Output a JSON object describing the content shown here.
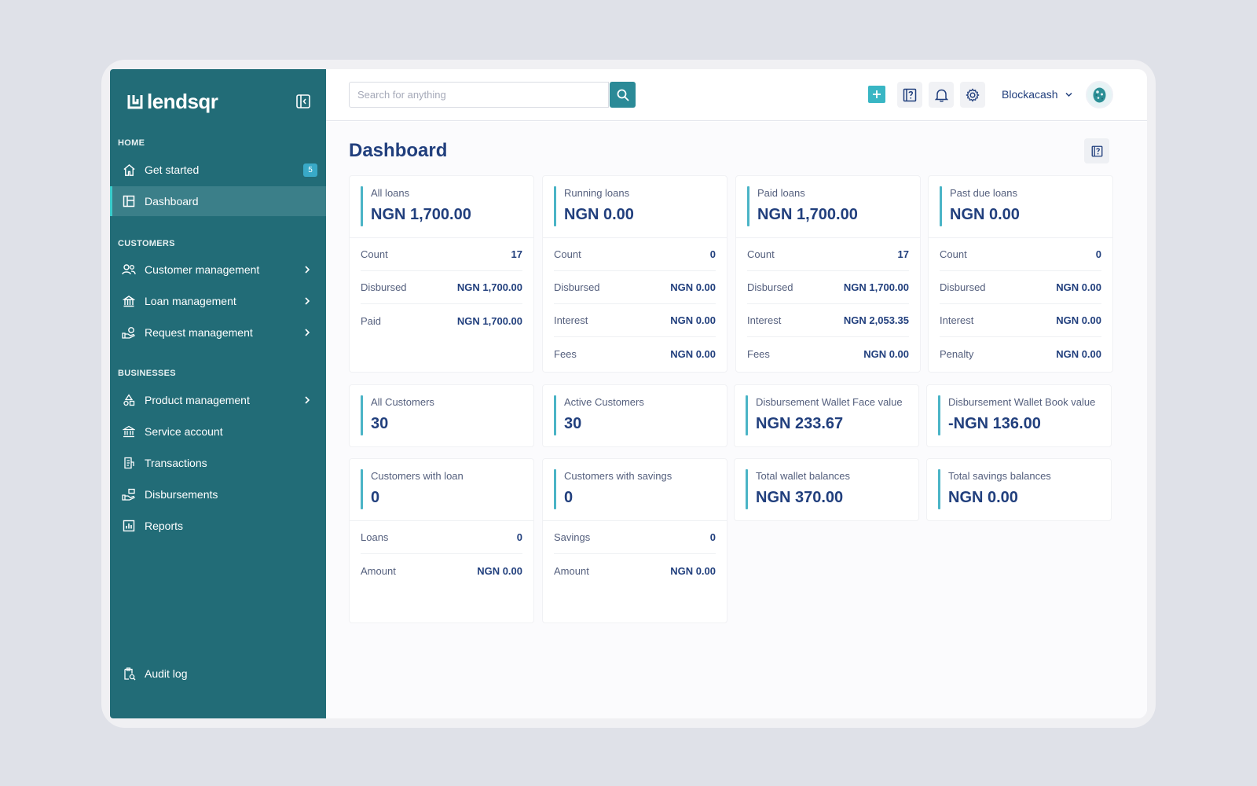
{
  "brand": {
    "name": "lendsqr"
  },
  "sidebar": {
    "sections": {
      "home": "HOME",
      "customers": "CUSTOMERS",
      "businesses": "BUSINESSES"
    },
    "get_started": {
      "label": "Get started",
      "badge": "5",
      "icon": "home-icon"
    },
    "dashboard": {
      "label": "Dashboard",
      "icon": "dashboard-icon"
    },
    "customer_management": {
      "label": "Customer management",
      "icon": "users-icon"
    },
    "loan_management": {
      "label": "Loan management",
      "icon": "loan-icon"
    },
    "request_management": {
      "label": "Request management",
      "icon": "request-icon"
    },
    "product_management": {
      "label": "Product management",
      "icon": "product-icon"
    },
    "service_account": {
      "label": "Service account",
      "icon": "bank-icon"
    },
    "transactions": {
      "label": "Transactions",
      "icon": "transactions-icon"
    },
    "disbursements": {
      "label": "Disbursements",
      "icon": "disbursements-icon"
    },
    "reports": {
      "label": "Reports",
      "icon": "reports-icon"
    },
    "audit_log": {
      "label": "Audit log",
      "icon": "audit-icon"
    }
  },
  "topbar": {
    "search_placeholder": "Search for anything",
    "user_name": "Blockacash"
  },
  "page": {
    "title": "Dashboard"
  },
  "cards": {
    "all_loans": {
      "label": "All loans",
      "value": "NGN 1,700.00",
      "rows": [
        {
          "k": "Count",
          "v": "17"
        },
        {
          "k": "Disbursed",
          "v": "NGN 1,700.00"
        },
        {
          "k": "Paid",
          "v": "NGN 1,700.00"
        }
      ]
    },
    "running_loans": {
      "label": "Running loans",
      "value": "NGN 0.00",
      "rows": [
        {
          "k": "Count",
          "v": "0"
        },
        {
          "k": "Disbursed",
          "v": "NGN 0.00"
        },
        {
          "k": "Interest",
          "v": "NGN 0.00"
        },
        {
          "k": "Fees",
          "v": "NGN 0.00"
        }
      ]
    },
    "paid_loans": {
      "label": "Paid loans",
      "value": "NGN 1,700.00",
      "rows": [
        {
          "k": "Count",
          "v": "17"
        },
        {
          "k": "Disbursed",
          "v": "NGN 1,700.00"
        },
        {
          "k": "Interest",
          "v": "NGN 2,053.35"
        },
        {
          "k": "Fees",
          "v": "NGN 0.00"
        }
      ]
    },
    "past_due_loans": {
      "label": "Past due loans",
      "value": "NGN 0.00",
      "rows": [
        {
          "k": "Count",
          "v": "0"
        },
        {
          "k": "Disbursed",
          "v": "NGN 0.00"
        },
        {
          "k": "Interest",
          "v": "NGN 0.00"
        },
        {
          "k": "Penalty",
          "v": "NGN 0.00"
        }
      ]
    },
    "all_customers": {
      "label": "All Customers",
      "value": "30"
    },
    "active_customers": {
      "label": "Active Customers",
      "value": "30"
    },
    "wallet_face": {
      "label": "Disbursement Wallet Face value",
      "value": "NGN 233.67"
    },
    "wallet_book": {
      "label": "Disbursement Wallet Book value",
      "value": "-NGN 136.00"
    },
    "customers_with_loan": {
      "label": "Customers with loan",
      "value": "0",
      "rows": [
        {
          "k": "Loans",
          "v": "0"
        },
        {
          "k": "Amount",
          "v": "NGN 0.00"
        }
      ]
    },
    "customers_with_savings": {
      "label": "Customers with savings",
      "value": "0",
      "rows": [
        {
          "k": "Savings",
          "v": "0"
        },
        {
          "k": "Amount",
          "v": "NGN 0.00"
        }
      ]
    },
    "total_wallet": {
      "label": "Total wallet balances",
      "value": "NGN 370.00"
    },
    "total_savings": {
      "label": "Total savings balances",
      "value": "NGN 0.00"
    }
  },
  "colors": {
    "sidebar_bg": "#226c77",
    "accent": "#39cdcc",
    "primary_text": "#213f7d",
    "secondary_text": "#545f7d"
  }
}
